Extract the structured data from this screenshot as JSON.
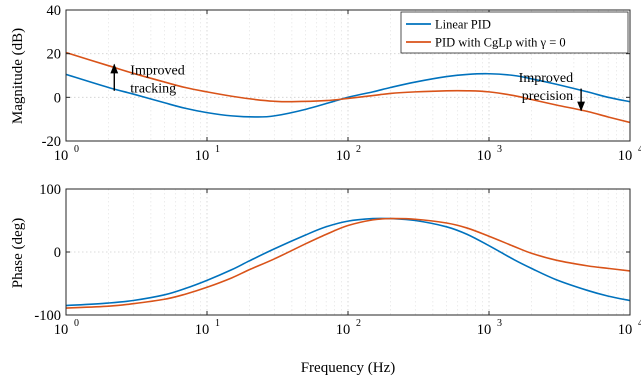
{
  "chart_data": [
    {
      "type": "line",
      "name": "magnitude",
      "xscale": "log",
      "xlim": [
        1,
        10000
      ],
      "ylim": [
        -20,
        40
      ],
      "xticks": [
        1,
        10,
        100,
        1000,
        10000
      ],
      "xtick_labels": [
        "10",
        "10",
        "10",
        "10",
        "10"
      ],
      "xtick_exponents": [
        "0",
        "1",
        "2",
        "3",
        "4"
      ],
      "yticks": [
        -20,
        0,
        20,
        40
      ],
      "ytick_labels": [
        "-20",
        "0",
        "20",
        "40"
      ],
      "xlabel": "",
      "ylabel": "Magnitude (dB)",
      "grid": true,
      "legend": "top-right",
      "series": [
        {
          "name": "Linear PID",
          "color": "#0072BD",
          "x": [
            1,
            2,
            3,
            5,
            7,
            10,
            15,
            22,
            30,
            50,
            100,
            150,
            200,
            300,
            500,
            700,
            1000,
            1500,
            2000,
            3000,
            5000,
            7000,
            10000
          ],
          "y": [
            10.5,
            4.5,
            1.5,
            -2.5,
            -5,
            -7,
            -8.5,
            -9,
            -8.5,
            -5.5,
            0,
            2.5,
            4.5,
            7,
            9.5,
            10.5,
            10.8,
            10,
            8.5,
            6,
            2.5,
            0,
            -2
          ]
        },
        {
          "name": "PID with CgLp with  γ = 0",
          "color": "#D95319",
          "x": [
            1,
            2,
            3,
            5,
            7,
            10,
            15,
            22,
            30,
            40,
            70,
            100,
            150,
            200,
            300,
            500,
            700,
            1000,
            1500,
            2000,
            3000,
            5000,
            7000,
            10000
          ],
          "y": [
            20.5,
            14.5,
            11,
            7,
            4.5,
            2.5,
            0.5,
            -1,
            -1.8,
            -2,
            -1.5,
            -0.5,
            0.8,
            1.8,
            2.5,
            3,
            3,
            2.5,
            0.8,
            -1,
            -3.5,
            -6.5,
            -9,
            -11.5
          ]
        }
      ],
      "annotations": [
        {
          "text": [
            "Improved",
            "tracking"
          ],
          "arrow": "up",
          "x": 2.2,
          "y_from": 3,
          "y_to": 15
        },
        {
          "text": [
            "Improved",
            "precision"
          ],
          "arrow": "down",
          "x": 4500,
          "y_from": 4,
          "y_to": -6
        }
      ]
    },
    {
      "type": "line",
      "name": "phase",
      "xscale": "log",
      "xlim": [
        1,
        10000
      ],
      "ylim": [
        -100,
        100
      ],
      "xticks": [
        1,
        10,
        100,
        1000,
        10000
      ],
      "xtick_labels": [
        "10",
        "10",
        "10",
        "10",
        "10"
      ],
      "xtick_exponents": [
        "0",
        "1",
        "2",
        "3",
        "4"
      ],
      "yticks": [
        -100,
        0,
        100
      ],
      "ytick_labels": [
        "-100",
        "0",
        "100"
      ],
      "xlabel": "Frequency (Hz)",
      "ylabel": "Phase (deg)",
      "grid": true,
      "series": [
        {
          "color": "#0072BD",
          "x": [
            1,
            2,
            3,
            5,
            7,
            10,
            15,
            20,
            30,
            50,
            70,
            100,
            150,
            200,
            300,
            500,
            700,
            1000,
            1500,
            2000,
            3000,
            5000,
            7000,
            10000
          ],
          "y": [
            -85,
            -81,
            -77,
            -68,
            -58,
            -45,
            -28,
            -14,
            5,
            27,
            40,
            49,
            53,
            53,
            50,
            40,
            28,
            10,
            -12,
            -26,
            -44,
            -61,
            -70,
            -77
          ]
        },
        {
          "color": "#D95319",
          "x": [
            1,
            2,
            3,
            5,
            7,
            10,
            15,
            20,
            30,
            50,
            70,
            100,
            150,
            200,
            300,
            500,
            700,
            1000,
            1500,
            2000,
            3000,
            5000,
            7000,
            10000
          ],
          "y": [
            -89,
            -86,
            -82,
            -75,
            -67,
            -56,
            -41,
            -28,
            -11,
            13,
            28,
            42,
            51,
            53,
            52,
            46,
            38,
            25,
            9,
            -2,
            -13,
            -22,
            -26,
            -30
          ]
        }
      ]
    }
  ]
}
